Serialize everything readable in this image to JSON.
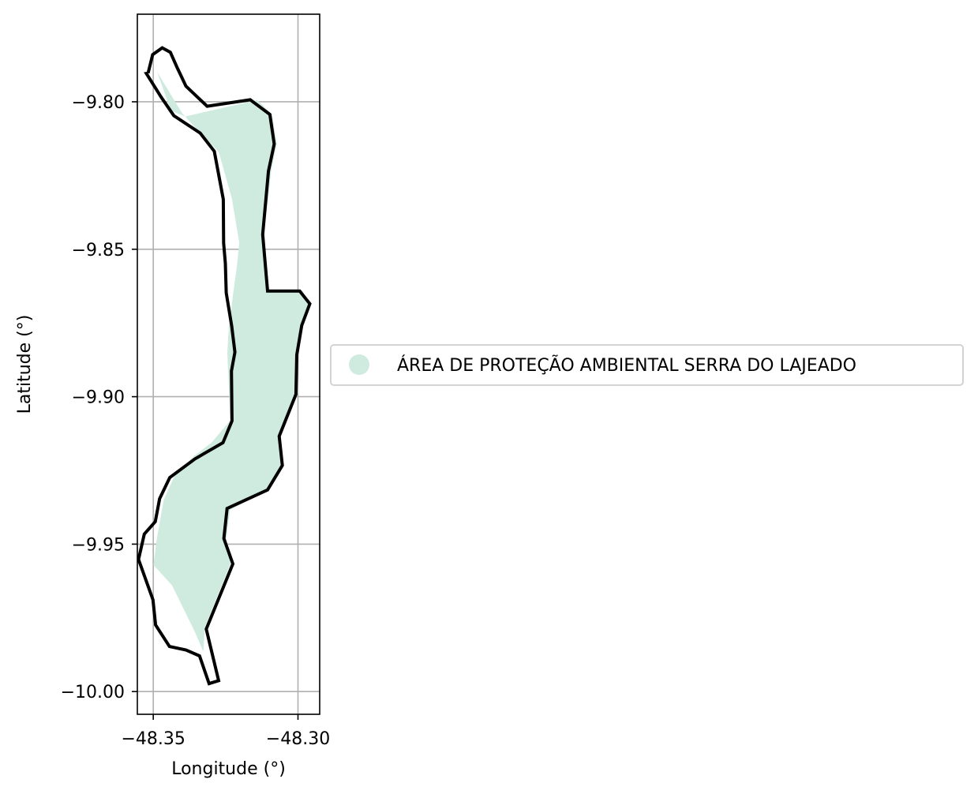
{
  "map": {
    "xlabel": "Longitude (°)",
    "ylabel": "Latitude (°)",
    "xlim": [
      -48.3555,
      -48.2925
    ],
    "ylim": [
      -10.0077,
      -9.7703
    ],
    "xticks": [
      {
        "value": -48.35,
        "label": "−48.35"
      },
      {
        "value": -48.3,
        "label": "−48.30"
      }
    ],
    "yticks": [
      {
        "value": -9.8,
        "label": "−9.80"
      },
      {
        "value": -9.85,
        "label": "−9.85"
      },
      {
        "value": -9.9,
        "label": "−9.90"
      },
      {
        "value": -9.95,
        "label": "−9.95"
      },
      {
        "value": -10.0,
        "label": "−10.00"
      }
    ],
    "grid": true,
    "fill_color": "#cfebdf",
    "outline_color": "#000000",
    "legend": {
      "placement": "right",
      "label": "ÁREA DE PROTEÇÃO AMBIENTAL SERRA DO LAJEADO",
      "marker_color": "#cfebdf"
    },
    "fill_polygon": [
      [
        -48.3487,
        -9.7898
      ],
      [
        -48.3439,
        -9.803
      ],
      [
        -48.339,
        -9.805
      ],
      [
        -48.3141,
        -9.7994
      ],
      [
        -48.309,
        -9.8042
      ],
      [
        -48.3073,
        -9.8142
      ],
      [
        -48.3092,
        -9.823
      ],
      [
        -48.3118,
        -9.8454
      ],
      [
        -48.3103,
        -9.864
      ],
      [
        -48.2985,
        -9.864
      ],
      [
        -48.2957,
        -9.8687
      ],
      [
        -48.2985,
        -9.876
      ],
      [
        -48.3,
        -9.886
      ],
      [
        -48.3,
        -9.899
      ],
      [
        -48.3065,
        -9.9136
      ],
      [
        -48.3055,
        -9.9234
      ],
      [
        -48.3105,
        -9.9317
      ],
      [
        -48.3235,
        -9.9384
      ],
      [
        -48.3248,
        -9.9483
      ],
      [
        -48.3233,
        -9.9566
      ],
      [
        -48.3322,
        -9.9784
      ],
      [
        -48.3327,
        -9.9865
      ],
      [
        -48.3355,
        -9.98
      ],
      [
        -48.3435,
        -9.964
      ],
      [
        -48.3499,
        -9.9571
      ],
      [
        -48.3488,
        -9.9482
      ],
      [
        -48.3464,
        -9.935
      ],
      [
        -48.3427,
        -9.927
      ],
      [
        -48.3359,
        -9.9201
      ],
      [
        -48.3299,
        -9.9156
      ],
      [
        -48.3234,
        -9.9081
      ],
      [
        -48.3244,
        -9.885
      ],
      [
        -48.3239,
        -9.8765
      ],
      [
        -48.3222,
        -9.8636
      ],
      [
        -48.321,
        -9.8549
      ],
      [
        -48.3203,
        -9.8478
      ],
      [
        -48.3228,
        -9.833
      ],
      [
        -48.3274,
        -9.8169
      ],
      [
        -48.3335,
        -9.8109
      ],
      [
        -48.34,
        -9.8039
      ],
      [
        -48.3476,
        -9.7916
      ]
    ],
    "outline": [
      [
        -48.3518,
        -9.7903
      ],
      [
        -48.3502,
        -9.784
      ],
      [
        -48.3469,
        -9.7817
      ],
      [
        -48.3441,
        -9.7832
      ],
      [
        -48.3417,
        -9.7885
      ],
      [
        -48.3387,
        -9.7947
      ],
      [
        -48.3314,
        -9.8015
      ],
      [
        -48.3165,
        -9.7993
      ],
      [
        -48.3097,
        -9.8043
      ],
      [
        -48.3082,
        -9.8143
      ],
      [
        -48.3102,
        -9.8235
      ],
      [
        -48.3122,
        -9.845
      ],
      [
        -48.3105,
        -9.8642
      ],
      [
        -48.2994,
        -9.8642
      ],
      [
        -48.2959,
        -9.8685
      ],
      [
        -48.2987,
        -9.8758
      ],
      [
        -48.3004,
        -9.8858
      ],
      [
        -48.3007,
        -9.8992
      ],
      [
        -48.3065,
        -9.9134
      ],
      [
        -48.3054,
        -9.9233
      ],
      [
        -48.3105,
        -9.9316
      ],
      [
        -48.3245,
        -9.9379
      ],
      [
        -48.3256,
        -9.9481
      ],
      [
        -48.3225,
        -9.9567
      ],
      [
        -48.3317,
        -9.9788
      ],
      [
        -48.3274,
        -9.9963
      ],
      [
        -48.3307,
        -9.9973
      ],
      [
        -48.334,
        -9.9879
      ],
      [
        -48.3387,
        -9.9859
      ],
      [
        -48.3444,
        -9.9847
      ],
      [
        -48.3492,
        -9.9774
      ],
      [
        -48.3501,
        -9.9689
      ],
      [
        -48.3551,
        -9.9552
      ],
      [
        -48.3531,
        -9.9466
      ],
      [
        -48.3493,
        -9.9424
      ],
      [
        -48.3478,
        -9.9346
      ],
      [
        -48.3443,
        -9.9274
      ],
      [
        -48.3356,
        -9.9211
      ],
      [
        -48.3259,
        -9.9156
      ],
      [
        -48.3228,
        -9.9082
      ],
      [
        -48.323,
        -9.8913
      ],
      [
        -48.3218,
        -9.8849
      ],
      [
        -48.3229,
        -9.876
      ],
      [
        -48.3248,
        -9.8648
      ],
      [
        -48.3251,
        -9.8548
      ],
      [
        -48.3257,
        -9.8479
      ],
      [
        -48.3258,
        -9.8331
      ],
      [
        -48.3289,
        -9.8168
      ],
      [
        -48.3338,
        -9.8106
      ],
      [
        -48.3429,
        -9.8047
      ],
      [
        -48.3472,
        -9.7985
      ],
      [
        -48.3524,
        -9.7904
      ],
      [
        -48.3518,
        -9.7903
      ]
    ]
  }
}
